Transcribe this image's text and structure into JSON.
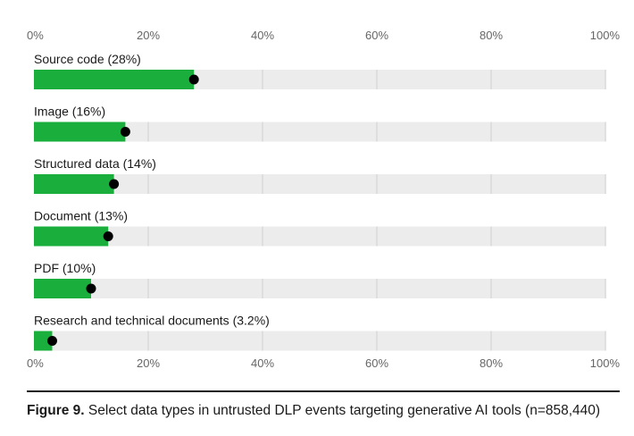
{
  "chart_data": {
    "type": "bar",
    "orientation": "horizontal",
    "categories": [
      "Source code (28%)",
      "Image (16%)",
      "Structured data (14%)",
      "Document (13%)",
      "PDF (10%)",
      "Research and technical documents (3.2%)"
    ],
    "values": [
      28,
      16,
      14,
      13,
      10,
      3.2
    ],
    "xlim": [
      0,
      100
    ],
    "x_ticks": [
      "0%",
      "20%",
      "40%",
      "60%",
      "80%",
      "100%"
    ],
    "tick_values": [
      0,
      20,
      40,
      60,
      80,
      100
    ],
    "x_axis_position": "top and bottom",
    "grid": true,
    "colors": {
      "bar": "#1aaf3c",
      "track": "#ececec",
      "marker": "#000000",
      "grid": "#d9d9d9",
      "text": "#1a1a1a"
    }
  },
  "caption": {
    "label": "Figure 9.",
    "text": "Select data types in untrusted DLP events targeting generative AI tools (n=858,440)"
  }
}
